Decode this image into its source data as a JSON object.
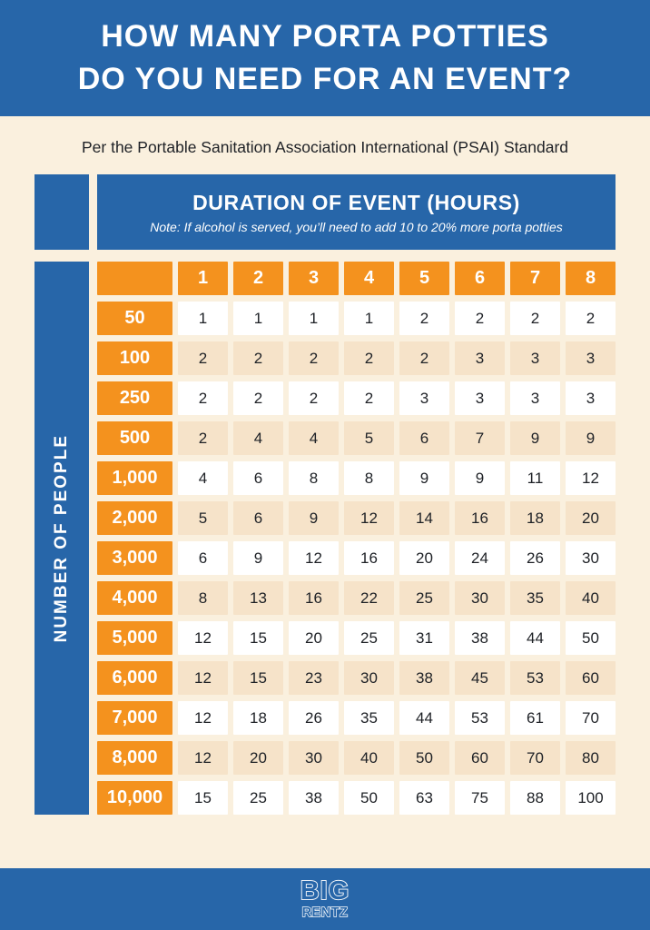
{
  "header": {
    "title_line1": "HOW MANY PORTA POTTIES",
    "title_line2": "DO YOU NEED FOR AN EVENT?"
  },
  "subtitle": "Per the Portable Sanitation Association International (PSAI) Standard",
  "table": {
    "duration_header": "DURATION OF EVENT (HOURS)",
    "duration_note": "Note: If alcohol is served, you’ll need to add 10 to 20% more porta potties",
    "people_axis_label": "NUMBER OF PEOPLE"
  },
  "footer": {
    "logo_top": "BIG",
    "logo_bottom": "RENTZ"
  },
  "colors": {
    "blue": "#2766A9",
    "orange": "#F4921E",
    "cream": "#FAF0DE",
    "peach": "#F6E3C9",
    "cell_white": "#FFFFFF",
    "text_dark": "#1E2126",
    "text_white": "#FFFFFF"
  },
  "chart_data": {
    "type": "table",
    "title": "HOW MANY PORTA POTTIES DO YOU NEED FOR AN EVENT?",
    "subtitle": "Per the Portable Sanitation Association International (PSAI) Standard",
    "column_group_label": "DURATION OF EVENT (HOURS)",
    "row_group_label": "NUMBER OF PEOPLE",
    "note": "If alcohol is served, you'll need to add 10 to 20% more porta potties",
    "columns": [
      "1",
      "2",
      "3",
      "4",
      "5",
      "6",
      "7",
      "8"
    ],
    "row_labels": [
      "50",
      "100",
      "250",
      "500",
      "1,000",
      "2,000",
      "3,000",
      "4,000",
      "5,000",
      "6,000",
      "7,000",
      "8,000",
      "10,000"
    ],
    "values": [
      [
        1,
        1,
        1,
        1,
        2,
        2,
        2,
        2
      ],
      [
        2,
        2,
        2,
        2,
        2,
        3,
        3,
        3
      ],
      [
        2,
        2,
        2,
        2,
        3,
        3,
        3,
        3
      ],
      [
        2,
        4,
        4,
        5,
        6,
        7,
        9,
        9
      ],
      [
        4,
        6,
        8,
        8,
        9,
        9,
        11,
        12
      ],
      [
        5,
        6,
        9,
        12,
        14,
        16,
        18,
        20
      ],
      [
        6,
        9,
        12,
        16,
        20,
        24,
        26,
        30
      ],
      [
        8,
        13,
        16,
        22,
        25,
        30,
        35,
        40
      ],
      [
        12,
        15,
        20,
        25,
        31,
        38,
        44,
        50
      ],
      [
        12,
        15,
        23,
        30,
        38,
        45,
        53,
        60
      ],
      [
        12,
        18,
        26,
        35,
        44,
        53,
        61,
        70
      ],
      [
        12,
        20,
        30,
        40,
        50,
        60,
        70,
        80
      ],
      [
        15,
        25,
        38,
        50,
        63,
        75,
        88,
        100
      ]
    ]
  }
}
